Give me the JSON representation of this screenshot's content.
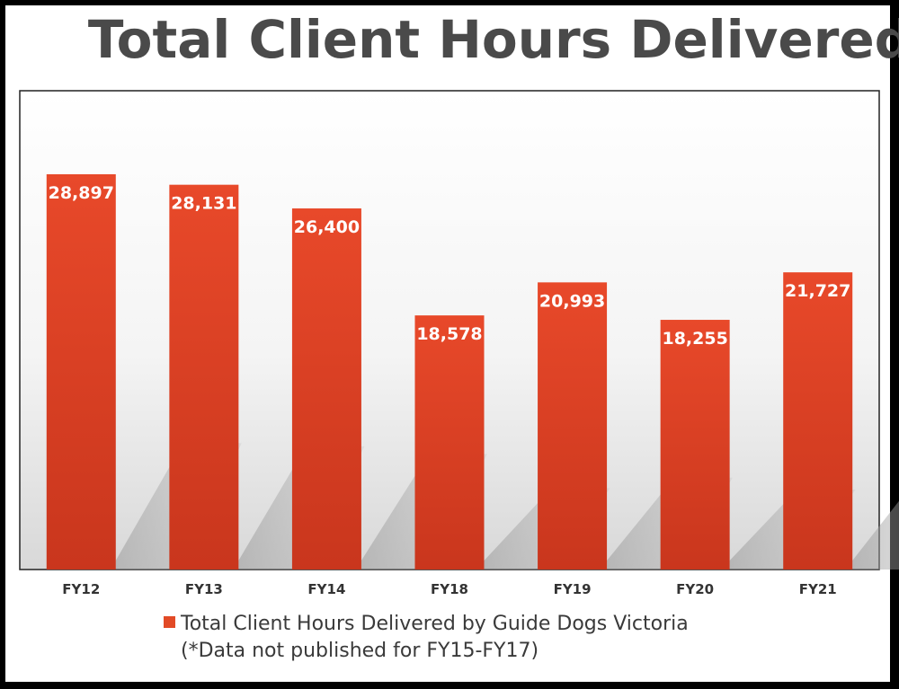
{
  "page": {
    "title": "Total Client Hours Delivered"
  },
  "legend": {
    "label": "Total Client Hours Delivered by Guide Dogs Victoria",
    "note": "(*Data not published for FY15-FY17)",
    "color": "#e24a26"
  },
  "chart_data": {
    "type": "bar",
    "title": "Total Client Hours Delivered",
    "xlabel": "",
    "ylabel": "",
    "categories": [
      "FY12",
      "FY13",
      "FY14",
      "FY18",
      "FY19",
      "FY20",
      "FY21"
    ],
    "series": [
      {
        "name": "Total Client Hours Delivered by Guide Dogs Victoria",
        "values": [
          28897,
          28131,
          26400,
          18578,
          20993,
          18255,
          21727
        ],
        "labels": [
          "28,897",
          "28,131",
          "26,400",
          "18,578",
          "20,993",
          "18,255",
          "21,727"
        ]
      }
    ],
    "ylim": [
      0,
      29000
    ],
    "grid": false,
    "legend_position": "bottom",
    "bar_color_top": "#e8492a",
    "bar_color_bottom": "#c9361d"
  }
}
